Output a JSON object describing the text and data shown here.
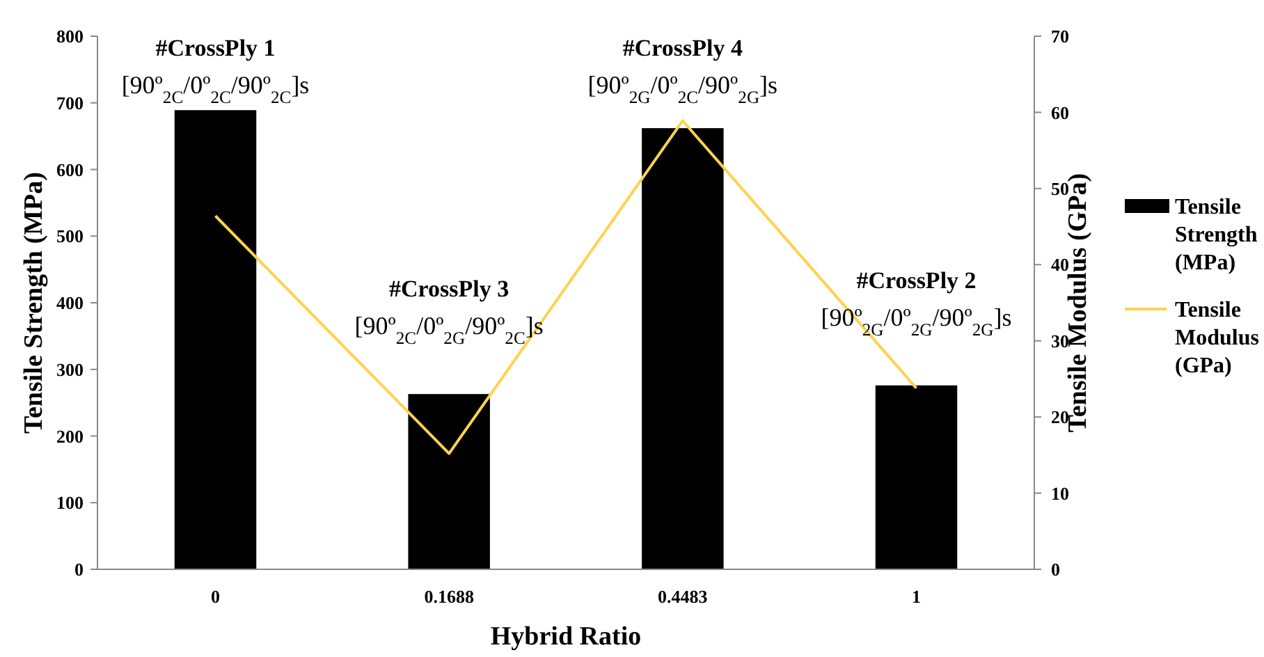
{
  "chart_data": {
    "type": "bar",
    "xlabel": "Hybrid Ratio",
    "ylabel": "Tensile Strength (MPa)",
    "y2label": "Tensile Modulus (GPa)",
    "categories": [
      "0",
      "0.1688",
      "0.4483",
      "1"
    ],
    "series": [
      {
        "name": "Tensile Strength (MPa)",
        "color": "#000000",
        "values": [
          689,
          263,
          662,
          276
        ]
      },
      {
        "name": "Tensile Modulus (GPa)",
        "type": "line",
        "axis": "y2",
        "color": "#ffd24f",
        "values": [
          46.4,
          15.2,
          58.9,
          23.8
        ]
      }
    ],
    "ylim": [
      0,
      800
    ],
    "yticks": [
      0,
      100,
      200,
      300,
      400,
      500,
      600,
      700,
      800
    ],
    "y2lim": [
      0,
      70
    ],
    "y2ticks": [
      0,
      10,
      20,
      30,
      40,
      50,
      60,
      70
    ],
    "annotations": [
      "#CrossPly 1",
      "[90º$_{2C}$/0º$_{2C}$/90º$_{2C}$]s",
      "#CrossPly 3",
      "[90º$_{2C}$/0º$_{2G}$/90º$_{2C}$]s",
      "#CrossPly 4",
      "[90º$_{2G}$/0º$_{2C}$/90º$_{2G}$]s",
      "#CrossPly 2",
      "[90º$_{2G}$/0º$_{2G}$/90º$_{2G}$]s"
    ],
    "grid": false,
    "legend": "right",
    "marker": "none",
    "line_style": "solid"
  }
}
